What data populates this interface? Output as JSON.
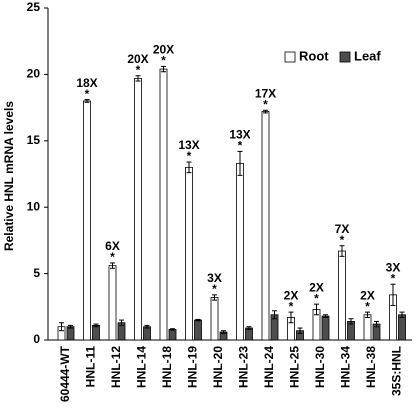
{
  "chart_data": {
    "type": "bar",
    "y_label": "Relative HNL mRNA levels",
    "categories": [
      "60444-WT",
      "HNL-11",
      "HNL-12",
      "HNL-14",
      "HNL-18",
      "HNL-19",
      "HNL-20",
      "HNL-23",
      "HNL-24",
      "HNL-25",
      "HNL-30",
      "HNL-34",
      "HNL-38",
      "35S:HNL"
    ],
    "series": [
      {
        "name": "Root",
        "color": "#ffffff",
        "values": [
          1.0,
          18.0,
          5.6,
          19.7,
          20.4,
          13.0,
          3.2,
          13.3,
          17.2,
          1.7,
          2.3,
          6.7,
          1.9,
          3.4
        ],
        "errors": [
          0.3,
          0.1,
          0.2,
          0.2,
          0.2,
          0.4,
          0.2,
          0.9,
          0.1,
          0.4,
          0.4,
          0.4,
          0.2,
          0.8
        ]
      },
      {
        "name": "Leaf",
        "color": "#4d4d4d",
        "values": [
          1.0,
          1.1,
          1.3,
          1.0,
          0.8,
          1.5,
          0.6,
          0.9,
          1.9,
          0.7,
          1.8,
          1.4,
          1.2,
          1.9
        ],
        "errors": [
          0.1,
          0.1,
          0.2,
          0.1,
          0.05,
          0.05,
          0.1,
          0.1,
          0.3,
          0.2,
          0.1,
          0.2,
          0.2,
          0.2
        ]
      }
    ],
    "fold_labels": [
      null,
      "18X",
      "6X",
      "20X",
      "20X",
      "13X",
      "3X",
      "13X",
      "17X",
      "2X",
      "2X",
      "7X",
      "2X",
      "3X"
    ],
    "significance": [
      null,
      "*",
      "*",
      "*",
      "*",
      "*",
      "*",
      "*",
      "*",
      "*",
      "*",
      "*",
      "*",
      "*"
    ],
    "ylim": [
      0,
      25
    ],
    "yticks": [
      0,
      5,
      10,
      15,
      20,
      25
    ],
    "legend": "top-right"
  }
}
